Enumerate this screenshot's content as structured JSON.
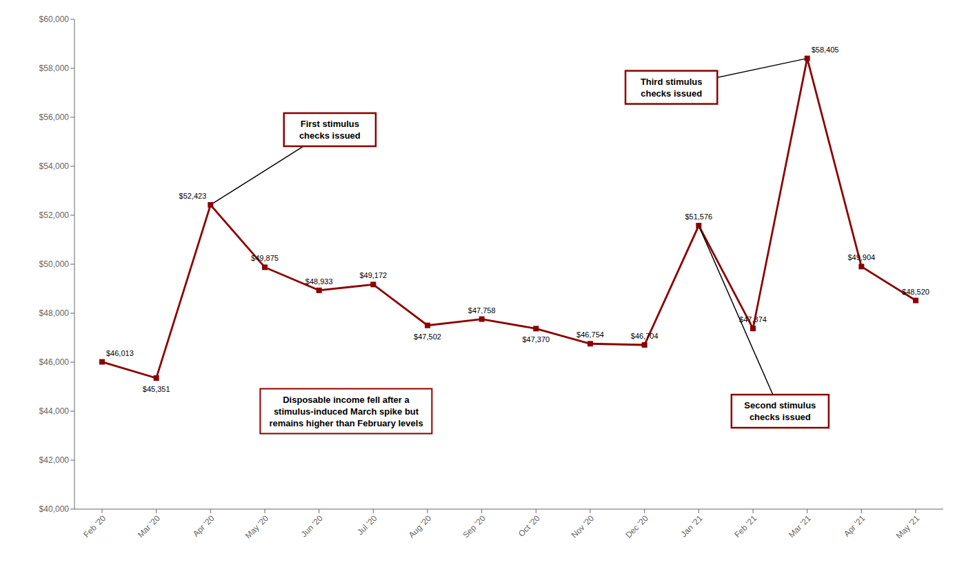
{
  "chart_data": {
    "type": "line",
    "categories": [
      "Feb '20",
      "Mar '20",
      "Apr '20",
      "May '20",
      "Jun '20",
      "Jul '20",
      "Aug '20",
      "Sep '20",
      "Oct '20",
      "Nov '20",
      "Dec '20",
      "Jan '21",
      "Feb '21",
      "Mar '21",
      "Apr '21",
      "May '21"
    ],
    "values": [
      46013,
      45351,
      52423,
      49875,
      48933,
      49172,
      47502,
      47758,
      47370,
      46754,
      46704,
      51576,
      47374,
      58405,
      49904,
      48520
    ],
    "value_labels": [
      "$46,013",
      "$45,351",
      "$52,423",
      "$49,875",
      "$48,933",
      "$49,172",
      "$47,502",
      "$47,758",
      "$47,370",
      "$46,754",
      "$46,704",
      "$51,576",
      "$47,374",
      "$58,405",
      "$49,904",
      "$48,520"
    ],
    "data_labels": true,
    "color": "#8B0000",
    "marker": "square",
    "line_style": "solid",
    "grid": false,
    "ylim": [
      40000,
      60000
    ],
    "yticks": [
      {
        "value": 40000,
        "label": "$40,000"
      },
      {
        "value": 42000,
        "label": "$42,000"
      },
      {
        "value": 44000,
        "label": "$44,000"
      },
      {
        "value": 46000,
        "label": "$46,000"
      },
      {
        "value": 48000,
        "label": "$48,000"
      },
      {
        "value": 50000,
        "label": "$50,000"
      },
      {
        "value": 52000,
        "label": "$52,000"
      },
      {
        "value": 54000,
        "label": "$54,000"
      },
      {
        "value": 56000,
        "label": "$56,000"
      },
      {
        "value": 58000,
        "label": "$58,000"
      },
      {
        "value": 60000,
        "label": "$60,000"
      }
    ],
    "annotations": [
      {
        "text": "First stimulus\nchecks issued",
        "x": "Apr '20",
        "color": "#8B0000"
      },
      {
        "text": "Third stimulus\nchecks issued",
        "x": "Mar '21",
        "color": "#8B0000"
      },
      {
        "text": "Second stimulus\nchecks issued",
        "x": "Jan '21",
        "color": "#8B0000"
      },
      {
        "text": "Disposable income fell after a\nstimulus-induced March spike but\nremains higher than February levels",
        "color": "#8B0000"
      }
    ]
  }
}
